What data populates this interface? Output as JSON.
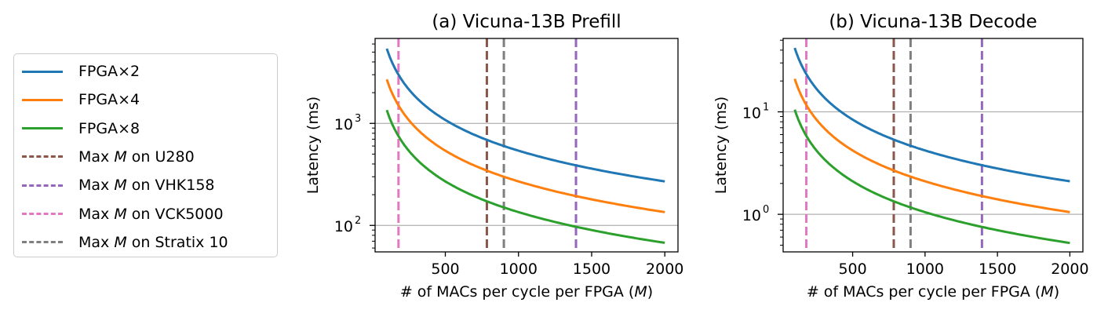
{
  "legend": {
    "items": [
      {
        "pre": "FPGA×2",
        "ital": "",
        "post": "",
        "color": "#1f77b4",
        "dashed": false
      },
      {
        "pre": "FPGA×4",
        "ital": "",
        "post": "",
        "color": "#ff7f0e",
        "dashed": false
      },
      {
        "pre": "FPGA×8",
        "ital": "",
        "post": "",
        "color": "#2ca02c",
        "dashed": false
      },
      {
        "pre": "Max ",
        "ital": "M",
        "post": " on U280",
        "color": "#8c564b",
        "dashed": true
      },
      {
        "pre": "Max ",
        "ital": "M",
        "post": " on VHK158",
        "color": "#9467bd",
        "dashed": true
      },
      {
        "pre": "Max ",
        "ital": "M",
        "post": " on VCK5000",
        "color": "#e377c2",
        "dashed": true
      },
      {
        "pre": "Max ",
        "ital": "M",
        "post": " on Stratix 10",
        "color": "#7f7f7f",
        "dashed": true
      }
    ]
  },
  "chart_data": [
    {
      "type": "line",
      "title": "(a) Vicuna-13B Prefill",
      "xlabel": "# of MACs per cycle per FPGA (",
      "xlabel_ital": "M",
      "xlabel_end": ")",
      "ylabel": "Latency (ms)",
      "yscale": "log",
      "xlim": [
        20,
        2090
      ],
      "ylim": [
        55,
        6800
      ],
      "xticks": [
        500,
        1000,
        1500,
        2000
      ],
      "xtick_labels": [
        "500",
        "1000",
        "1500",
        "2000"
      ],
      "yticks": [
        100,
        1000
      ],
      "ytick_labels": [
        {
          "base": "10",
          "exp": "2"
        },
        {
          "base": "10",
          "exp": "3"
        }
      ],
      "hgrid": [
        100,
        1000
      ],
      "series": [
        {
          "name": "FPGA×2",
          "color": "#1f77b4",
          "x": [
            100,
            200,
            300,
            400,
            500,
            750,
            1000,
            1500,
            2000
          ],
          "y": [
            5400,
            2700,
            1800,
            1350,
            1080,
            720,
            540,
            360,
            270
          ]
        },
        {
          "name": "FPGA×4",
          "color": "#ff7f0e",
          "x": [
            100,
            200,
            300,
            400,
            500,
            750,
            1000,
            1500,
            2000
          ],
          "y": [
            2700,
            1350,
            900,
            675,
            540,
            360,
            270,
            180,
            135
          ]
        },
        {
          "name": "FPGA×8",
          "color": "#2ca02c",
          "x": [
            100,
            200,
            300,
            400,
            500,
            750,
            1000,
            1500,
            2000
          ],
          "y": [
            1350,
            675,
            450,
            338,
            270,
            180,
            135,
            90,
            67.5
          ]
        }
      ],
      "vlines": [
        {
          "name": "Max M on U280",
          "x": 784,
          "color": "#8c564b"
        },
        {
          "name": "Max M on VHK158",
          "x": 1393,
          "color": "#9467bd"
        },
        {
          "name": "Max M on VCK5000",
          "x": 180,
          "color": "#e377c2"
        },
        {
          "name": "Max M on Stratix 10",
          "x": 900,
          "color": "#7f7f7f"
        }
      ]
    },
    {
      "type": "line",
      "title": "(b) Vicuna-13B Decode",
      "xlabel": "# of MACs per cycle per FPGA (",
      "xlabel_ital": "M",
      "xlabel_end": ")",
      "ylabel": "Latency (ms)",
      "yscale": "log",
      "xlim": [
        20,
        2090
      ],
      "ylim": [
        0.43,
        52
      ],
      "xticks": [
        500,
        1000,
        1500,
        2000
      ],
      "xtick_labels": [
        "500",
        "1000",
        "1500",
        "2000"
      ],
      "yticks": [
        1,
        10
      ],
      "ytick_labels": [
        {
          "base": "10",
          "exp": "0"
        },
        {
          "base": "10",
          "exp": "1"
        }
      ],
      "hgrid": [
        1,
        10
      ],
      "series": [
        {
          "name": "FPGA×2",
          "color": "#1f77b4",
          "x": [
            100,
            200,
            300,
            400,
            500,
            750,
            1000,
            1500,
            2000
          ],
          "y": [
            42,
            21,
            14,
            10.5,
            8.4,
            5.6,
            4.2,
            2.8,
            2.1
          ]
        },
        {
          "name": "FPGA×4",
          "color": "#ff7f0e",
          "x": [
            100,
            200,
            300,
            400,
            500,
            750,
            1000,
            1500,
            2000
          ],
          "y": [
            21,
            10.5,
            7,
            5.25,
            4.2,
            2.8,
            2.1,
            1.4,
            1.05
          ]
        },
        {
          "name": "FPGA×8",
          "color": "#2ca02c",
          "x": [
            100,
            200,
            300,
            400,
            500,
            750,
            1000,
            1500,
            2000
          ],
          "y": [
            10.5,
            5.25,
            3.5,
            2.63,
            2.1,
            1.4,
            1.05,
            0.7,
            0.525
          ]
        }
      ],
      "vlines": [
        {
          "name": "Max M on U280",
          "x": 784,
          "color": "#8c564b"
        },
        {
          "name": "Max M on VHK158",
          "x": 1393,
          "color": "#9467bd"
        },
        {
          "name": "Max M on VCK5000",
          "x": 180,
          "color": "#e377c2"
        },
        {
          "name": "Max M on Stratix 10",
          "x": 900,
          "color": "#7f7f7f"
        }
      ]
    }
  ]
}
